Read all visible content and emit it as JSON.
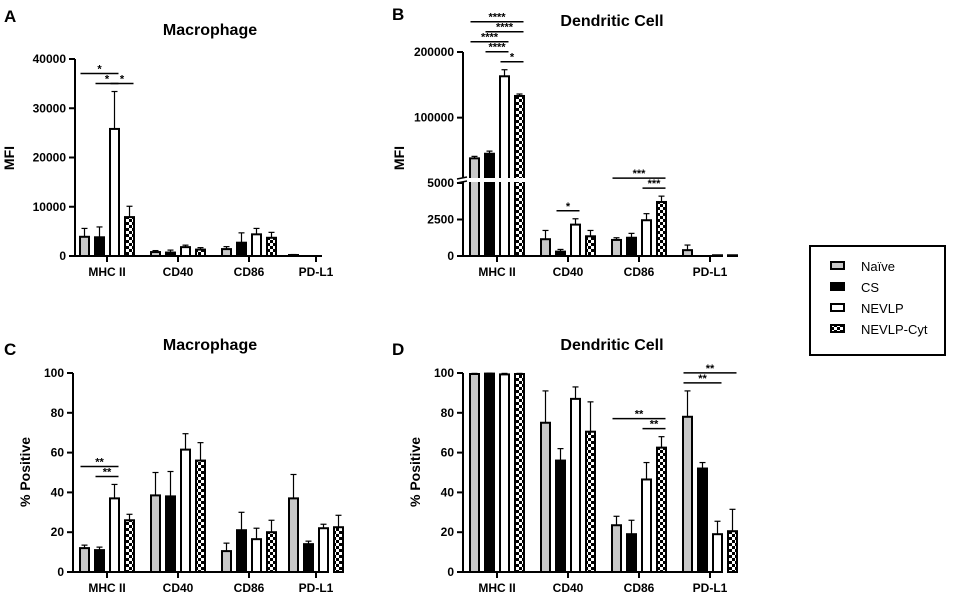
{
  "legend": {
    "entries": [
      {
        "name": "Naïve",
        "color": "#c8c8c8",
        "pattern": "solid"
      },
      {
        "name": "CS",
        "color": "#000000",
        "pattern": "solid"
      },
      {
        "name": "NEVLP",
        "color": "#ffffff",
        "pattern": "solid"
      },
      {
        "name": "NEVLP-Cyt",
        "color": "#000000",
        "pattern": "checker"
      }
    ]
  },
  "chart_data": [
    {
      "panel_label": "A",
      "type": "bar",
      "title": "Macrophage",
      "xlabel": "",
      "ylabel": "MFI",
      "ylim": [
        0,
        40000
      ],
      "yticks": [
        "0",
        "10000",
        "20000",
        "30000",
        "40000"
      ],
      "ytick_values": [
        0,
        10000,
        20000,
        30000,
        40000
      ],
      "categories": [
        "MHC II",
        "CD40",
        "CD86",
        "PD-L1"
      ],
      "series": [
        {
          "name": "Naïve",
          "values": [
            3900,
            800,
            1400,
            200
          ],
          "errors": [
            1700,
            300,
            500,
            100
          ]
        },
        {
          "name": "CS",
          "values": [
            3800,
            700,
            2700,
            0
          ],
          "errors": [
            2100,
            500,
            2000,
            0
          ]
        },
        {
          "name": "NEVLP",
          "values": [
            25800,
            1800,
            4400,
            0
          ],
          "errors": [
            7600,
            400,
            1200,
            0
          ]
        },
        {
          "name": "NEVLP-Cyt",
          "values": [
            7900,
            1300,
            3700,
            0
          ],
          "errors": [
            2200,
            400,
            1100,
            0
          ]
        }
      ],
      "significance": [
        {
          "category": 0,
          "from": 0,
          "to": 2,
          "label": "*",
          "tier": 1
        },
        {
          "category": 0,
          "from": 1,
          "to": 2,
          "label": "*",
          "tier": 0
        },
        {
          "category": 0,
          "from": 2,
          "to": 3,
          "label": "*",
          "tier": 0
        }
      ]
    },
    {
      "panel_label": "B",
      "type": "bar",
      "title": "Dendritic Cell",
      "xlabel": "",
      "ylabel": "MFI",
      "ylim": [
        0,
        200000
      ],
      "axis_break": 5000,
      "yticks": [
        "0",
        "2500",
        "5000",
        "100000",
        "200000"
      ],
      "ytick_values": [
        0,
        2500,
        5000,
        100000,
        200000
      ],
      "categories": [
        "MHC II",
        "CD40",
        "CD86",
        "PD-L1"
      ],
      "series": [
        {
          "name": "Naïve",
          "values": [
            38000,
            1150,
            1100,
            400
          ],
          "errors": [
            3000,
            600,
            150,
            350
          ]
        },
        {
          "name": "CS",
          "values": [
            45000,
            300,
            1250,
            0
          ],
          "errors": [
            4000,
            150,
            300,
            0
          ]
        },
        {
          "name": "NEVLP",
          "values": [
            163000,
            2150,
            2450,
            50
          ],
          "errors": [
            10000,
            400,
            450,
            0
          ]
        },
        {
          "name": "NEVLP-Cyt",
          "values": [
            133000,
            1350,
            3700,
            50
          ],
          "errors": [
            3000,
            400,
            400,
            0
          ]
        }
      ],
      "significance": [
        {
          "category": 0,
          "from": 0,
          "to": 3,
          "label": "****",
          "tier": 4
        },
        {
          "category": 0,
          "from": 1,
          "to": 3,
          "label": "****",
          "tier": 3
        },
        {
          "category": 0,
          "from": 0,
          "to": 2,
          "label": "****",
          "tier": 2
        },
        {
          "category": 0,
          "from": 1,
          "to": 2,
          "label": "****",
          "tier": 1
        },
        {
          "category": 0,
          "from": 2,
          "to": 3,
          "label": "*",
          "tier": 0
        },
        {
          "category": 1,
          "from": 1,
          "to": 2,
          "label": "*",
          "tier": 0
        },
        {
          "category": 2,
          "from": 0,
          "to": 3,
          "label": "***",
          "tier": 1
        },
        {
          "category": 2,
          "from": 2,
          "to": 3,
          "label": "***",
          "tier": 0
        }
      ]
    },
    {
      "panel_label": "C",
      "type": "bar",
      "title": "Macrophage",
      "xlabel": "",
      "ylabel": "% Positive",
      "ylim": [
        0,
        100
      ],
      "yticks": [
        "0",
        "20",
        "40",
        "60",
        "80",
        "100"
      ],
      "ytick_values": [
        0,
        20,
        40,
        60,
        80,
        100
      ],
      "categories": [
        "MHC II",
        "CD40",
        "CD86",
        "PD-L1"
      ],
      "series": [
        {
          "name": "Naïve",
          "values": [
            12,
            38.5,
            10.5,
            37
          ],
          "errors": [
            1.5,
            11.5,
            4,
            12
          ]
        },
        {
          "name": "CS",
          "values": [
            11,
            38,
            21,
            14
          ],
          "errors": [
            1.5,
            12.5,
            9,
            1.5
          ]
        },
        {
          "name": "NEVLP",
          "values": [
            37,
            61.5,
            16.5,
            22
          ],
          "errors": [
            7,
            8,
            5.5,
            2
          ]
        },
        {
          "name": "NEVLP-Cyt",
          "values": [
            26,
            56,
            20,
            22.5
          ],
          "errors": [
            3,
            9,
            6,
            6
          ]
        }
      ],
      "significance": [
        {
          "category": 0,
          "from": 0,
          "to": 2,
          "label": "**",
          "tier": 1
        },
        {
          "category": 0,
          "from": 1,
          "to": 2,
          "label": "**",
          "tier": 0
        }
      ]
    },
    {
      "panel_label": "D",
      "type": "bar",
      "title": "Dendritic Cell",
      "xlabel": "",
      "ylabel": "% Positive",
      "ylim": [
        0,
        100
      ],
      "yticks": [
        "0",
        "20",
        "40",
        "60",
        "80",
        "100"
      ],
      "ytick_values": [
        0,
        20,
        40,
        60,
        80,
        100
      ],
      "categories": [
        "MHC II",
        "CD40",
        "CD86",
        "PD-L1"
      ],
      "series": [
        {
          "name": "Naïve",
          "values": [
            99.5,
            75,
            23.5,
            78
          ],
          "errors": [
            0.3,
            16,
            4.5,
            13
          ]
        },
        {
          "name": "CS",
          "values": [
            99.7,
            56,
            19,
            52
          ],
          "errors": [
            0.2,
            6,
            7,
            3
          ]
        },
        {
          "name": "NEVLP",
          "values": [
            99.3,
            87,
            46.5,
            19
          ],
          "errors": [
            0.5,
            6,
            8.5,
            6.5
          ]
        },
        {
          "name": "NEVLP-Cyt",
          "values": [
            99.5,
            70.5,
            62.5,
            20.5
          ],
          "errors": [
            0.3,
            15,
            5.5,
            11
          ]
        }
      ],
      "significance": [
        {
          "category": 2,
          "from": 0,
          "to": 3,
          "label": "**",
          "tier": 1
        },
        {
          "category": 2,
          "from": 2,
          "to": 3,
          "label": "**",
          "tier": 0
        },
        {
          "category": 3,
          "from": 0,
          "to": 3,
          "label": "**",
          "tier": 1
        },
        {
          "category": 3,
          "from": 0,
          "to": 2,
          "label": "**",
          "tier": 0
        }
      ]
    }
  ]
}
